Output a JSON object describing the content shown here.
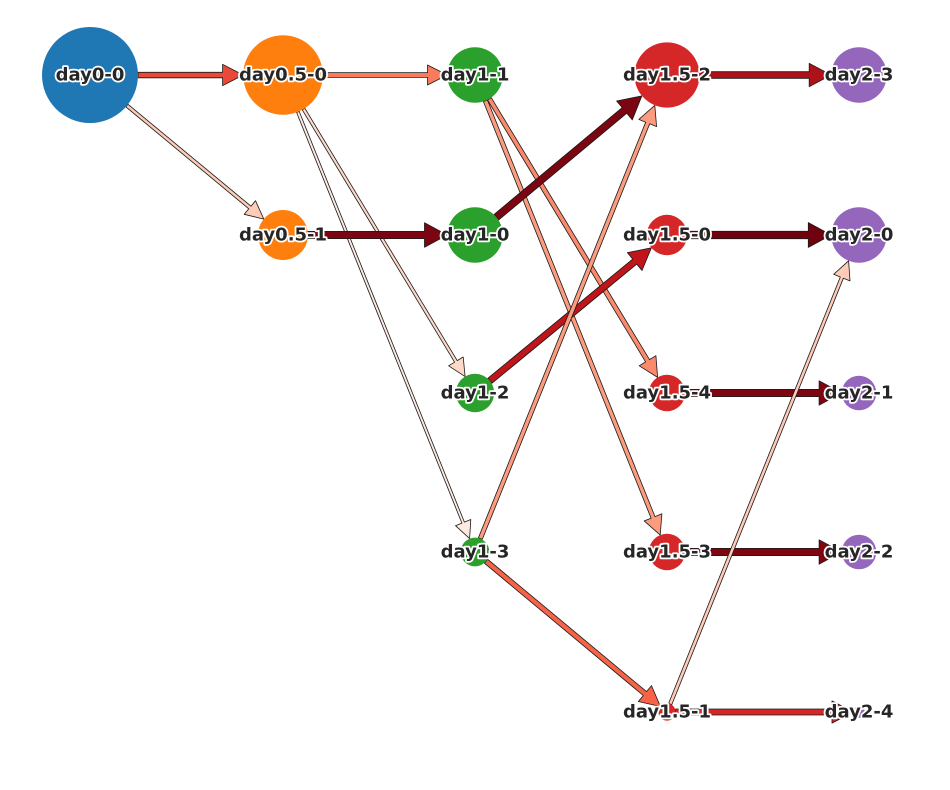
{
  "colors": {
    "day0": "#1f77b4",
    "day0.5": "#ff7f0e",
    "day1": "#2ca02c",
    "day1.5": "#d62728",
    "day2": "#9467bd"
  },
  "nodes": [
    {
      "id": "day0-0",
      "label": "day0-0",
      "group": "day0",
      "size": 1.0
    },
    {
      "id": "day0.5-0",
      "label": "day0.5-0",
      "group": "day0.5",
      "size": 0.83
    },
    {
      "id": "day0.5-1",
      "label": "day0.5-1",
      "group": "day0.5",
      "size": 0.52
    },
    {
      "id": "day1-1",
      "label": "day1-1",
      "group": "day1",
      "size": 0.58
    },
    {
      "id": "day1-0",
      "label": "day1-0",
      "group": "day1",
      "size": 0.58
    },
    {
      "id": "day1-2",
      "label": "day1-2",
      "group": "day1",
      "size": 0.4
    },
    {
      "id": "day1-3",
      "label": "day1-3",
      "group": "day1",
      "size": 0.3
    },
    {
      "id": "day1.5-2",
      "label": "day1.5-2",
      "group": "day1.5",
      "size": 0.68
    },
    {
      "id": "day1.5-0",
      "label": "day1.5-0",
      "group": "day1.5",
      "size": 0.42
    },
    {
      "id": "day1.5-4",
      "label": "day1.5-4",
      "group": "day1.5",
      "size": 0.38
    },
    {
      "id": "day1.5-3",
      "label": "day1.5-3",
      "group": "day1.5",
      "size": 0.38
    },
    {
      "id": "day1.5-1",
      "label": "day1.5-1",
      "group": "day1.5",
      "size": 0.18
    },
    {
      "id": "day2-3",
      "label": "day2-3",
      "group": "day2",
      "size": 0.58
    },
    {
      "id": "day2-0",
      "label": "day2-0",
      "group": "day2",
      "size": 0.58
    },
    {
      "id": "day2-1",
      "label": "day2-1",
      "group": "day2",
      "size": 0.36
    },
    {
      "id": "day2-2",
      "label": "day2-2",
      "group": "day2",
      "size": 0.36
    },
    {
      "id": "day2-4",
      "label": "day2-4",
      "group": "day2",
      "size": 0.12
    }
  ],
  "edges": [
    {
      "source": "day0-0",
      "target": "day0.5-0",
      "weight": 0.6
    },
    {
      "source": "day0-0",
      "target": "day0.5-1",
      "weight": 0.18
    },
    {
      "source": "day0.5-0",
      "target": "day1-1",
      "weight": 0.45
    },
    {
      "source": "day0.5-0",
      "target": "day1-2",
      "weight": 0.12
    },
    {
      "source": "day0.5-0",
      "target": "day1-3",
      "weight": 0.05
    },
    {
      "source": "day0.5-1",
      "target": "day1-0",
      "weight": 0.95
    },
    {
      "source": "day1-1",
      "target": "day1.5-4",
      "weight": 0.4
    },
    {
      "source": "day1-1",
      "target": "day1.5-3",
      "weight": 0.35
    },
    {
      "source": "day1-0",
      "target": "day1.5-2",
      "weight": 0.95
    },
    {
      "source": "day1-2",
      "target": "day1.5-0",
      "weight": 0.78
    },
    {
      "source": "day1-3",
      "target": "day1.5-2",
      "weight": 0.35
    },
    {
      "source": "day1-3",
      "target": "day1.5-1",
      "weight": 0.52
    },
    {
      "source": "day1.5-2",
      "target": "day2-3",
      "weight": 0.82
    },
    {
      "source": "day1.5-0",
      "target": "day2-0",
      "weight": 0.98
    },
    {
      "source": "day1.5-4",
      "target": "day2-1",
      "weight": 0.94
    },
    {
      "source": "day1.5-3",
      "target": "day2-2",
      "weight": 0.94
    },
    {
      "source": "day1.5-1",
      "target": "day2-4",
      "weight": 0.7
    },
    {
      "source": "day1.5-1",
      "target": "day2-0",
      "weight": 0.18
    }
  ]
}
